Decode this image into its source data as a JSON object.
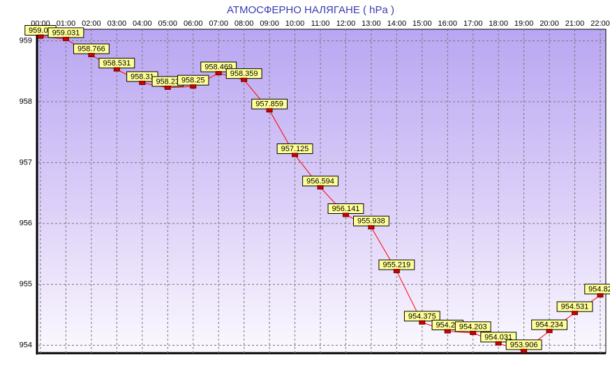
{
  "chart_data": {
    "type": "line",
    "title": "АТМОСФЕРНО НАЛЯГАНЕ  ( hPa )",
    "categories": [
      "00:00",
      "01:00",
      "02:00",
      "03:00",
      "04:00",
      "05:00",
      "06:00",
      "07:00",
      "08:00",
      "09:00",
      "10:00",
      "11:00",
      "12:00",
      "13:00",
      "14:00",
      "15:00",
      "16:00",
      "17:00",
      "18:00",
      "19:00",
      "20:00",
      "21:00",
      "22:00"
    ],
    "series": [
      {
        "name": "hPa",
        "color": "#ff0000",
        "values": [
          959.07,
          959.031,
          958.766,
          958.531,
          958.31,
          958.23,
          958.25,
          958.469,
          958.359,
          957.859,
          957.125,
          956.594,
          956.141,
          955.938,
          955.219,
          954.375,
          954.23,
          954.203,
          954.031,
          953.906,
          954.234,
          954.531,
          954.82
        ]
      }
    ],
    "ylim": [
      953.87,
      959.19
    ],
    "yticks": [
      954,
      955,
      956,
      957,
      958,
      959
    ],
    "grid": true
  }
}
